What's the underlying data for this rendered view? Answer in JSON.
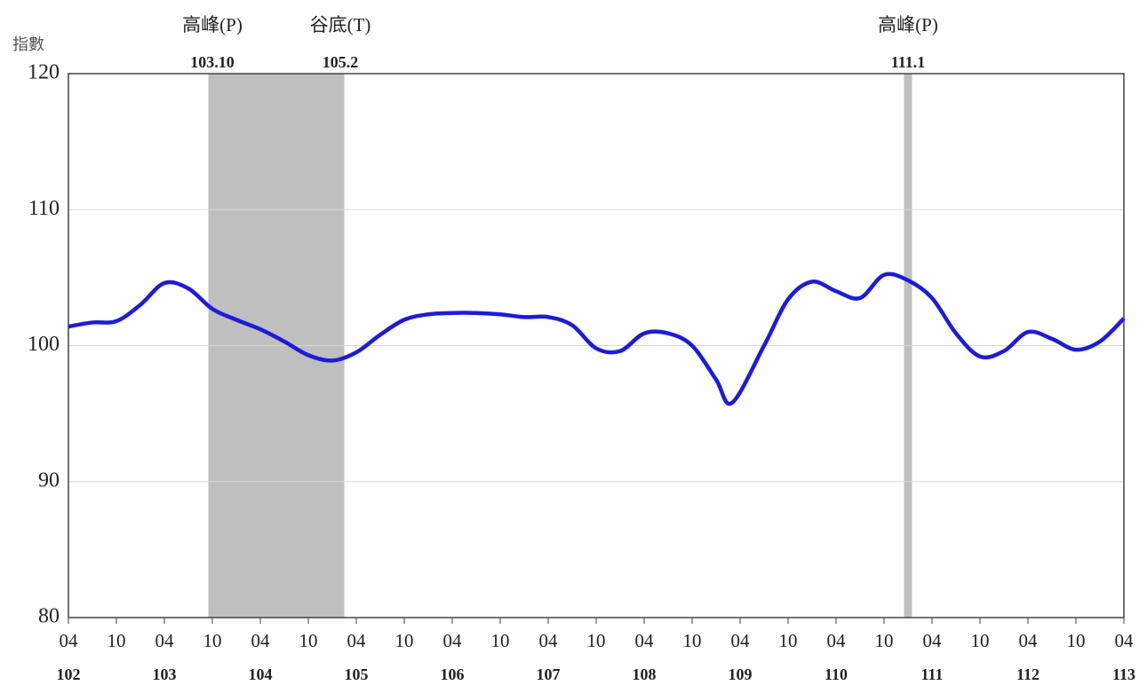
{
  "chart_data": {
    "type": "line",
    "ylabel": "指數",
    "ylim": [
      80,
      120
    ],
    "yticks": [
      80,
      90,
      100,
      110,
      120
    ],
    "grid": true,
    "xlim": [
      "102-04",
      "113-04"
    ],
    "xticks": [
      {
        "value": "102-04",
        "label": "04"
      },
      {
        "value": "102-10",
        "label": "10"
      },
      {
        "value": "103-04",
        "label": "04"
      },
      {
        "value": "103-10",
        "label": "10"
      },
      {
        "value": "104-04",
        "label": "04"
      },
      {
        "value": "104-10",
        "label": "10"
      },
      {
        "value": "105-04",
        "label": "04"
      },
      {
        "value": "105-10",
        "label": "10"
      },
      {
        "value": "106-04",
        "label": "04"
      },
      {
        "value": "106-10",
        "label": "10"
      },
      {
        "value": "107-04",
        "label": "04"
      },
      {
        "value": "107-10",
        "label": "10"
      },
      {
        "value": "108-04",
        "label": "04"
      },
      {
        "value": "108-10",
        "label": "10"
      },
      {
        "value": "109-04",
        "label": "04"
      },
      {
        "value": "109-10",
        "label": "10"
      },
      {
        "value": "110-04",
        "label": "04"
      },
      {
        "value": "110-10",
        "label": "10"
      },
      {
        "value": "111-04",
        "label": "04"
      },
      {
        "value": "111-10",
        "label": "10"
      },
      {
        "value": "112-04",
        "label": "04"
      },
      {
        "value": "112-10",
        "label": "10"
      },
      {
        "value": "113-04",
        "label": "04"
      }
    ],
    "year_labels": [
      {
        "value": "102-04",
        "label": "102"
      },
      {
        "value": "103-04",
        "label": "103"
      },
      {
        "value": "104-04",
        "label": "104"
      },
      {
        "value": "105-04",
        "label": "105"
      },
      {
        "value": "106-04",
        "label": "106"
      },
      {
        "value": "107-04",
        "label": "107"
      },
      {
        "value": "108-04",
        "label": "108"
      },
      {
        "value": "109-04",
        "label": "109"
      },
      {
        "value": "110-04",
        "label": "110"
      },
      {
        "value": "111-04",
        "label": "111"
      },
      {
        "value": "112-04",
        "label": "112"
      },
      {
        "value": "113-04",
        "label": "113"
      }
    ],
    "shaded": [
      {
        "from": "103-10",
        "to": "105-02",
        "color": "#bfbfbf"
      },
      {
        "from": "111-01",
        "to": "111-01",
        "color": "#bfbfbf"
      }
    ],
    "annotations": [
      {
        "x": "103-10",
        "text": "高峰(P)",
        "date": "103.10"
      },
      {
        "x": "105-02",
        "text": "谷底(T)",
        "date": "105.2"
      },
      {
        "x": "111-01",
        "text": "高峰(P)",
        "date": "111.1"
      }
    ],
    "x": [
      "102-04",
      "102-07",
      "102-10",
      "103-01",
      "103-04",
      "103-07",
      "103-10",
      "104-01",
      "104-04",
      "104-07",
      "104-10",
      "105-01",
      "105-04",
      "105-07",
      "105-10",
      "106-01",
      "106-04",
      "106-07",
      "106-10",
      "107-01",
      "107-04",
      "107-07",
      "107-10",
      "108-01",
      "108-04",
      "108-07",
      "108-10",
      "109-01",
      "109-03",
      "109-07",
      "109-10",
      "110-01",
      "110-04",
      "110-07",
      "110-10",
      "111-01",
      "111-04",
      "111-07",
      "111-10",
      "112-01",
      "112-04",
      "112-07",
      "112-10",
      "113-01",
      "113-04"
    ],
    "series": [
      {
        "color": "#1c1cd8",
        "values": [
          101.4,
          101.7,
          101.8,
          103.0,
          104.6,
          104.2,
          102.7,
          101.9,
          101.2,
          100.3,
          99.3,
          98.9,
          99.5,
          100.8,
          101.9,
          102.3,
          102.4,
          102.4,
          102.3,
          102.1,
          102.1,
          101.5,
          99.8,
          99.6,
          100.9,
          100.9,
          100.0,
          97.5,
          95.8,
          100.0,
          103.4,
          104.7,
          104.0,
          103.5,
          105.2,
          104.8,
          103.5,
          100.9,
          99.2,
          99.6,
          101.0,
          100.5,
          99.7,
          100.3,
          102.0
        ]
      }
    ]
  }
}
